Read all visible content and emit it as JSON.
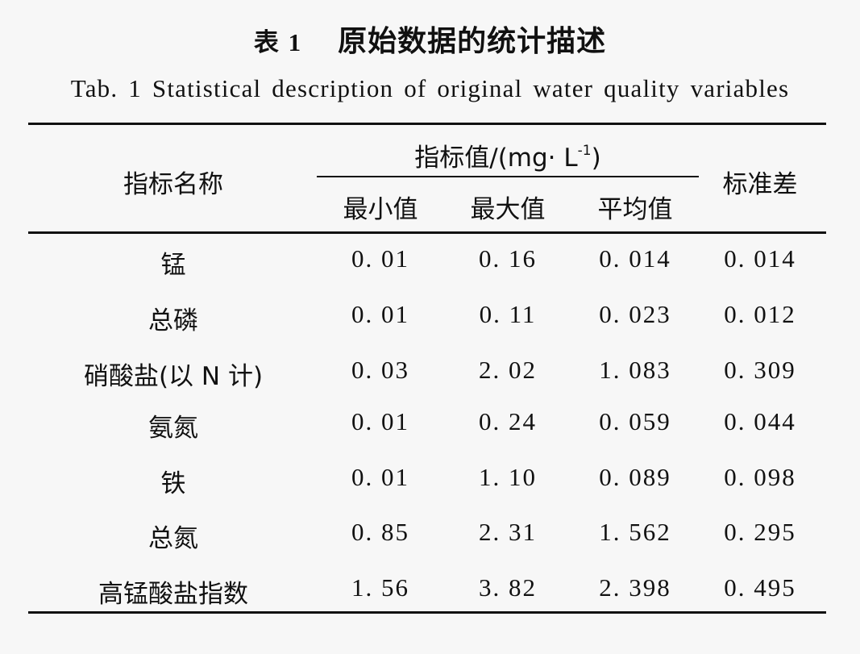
{
  "table": {
    "caption_cn_number": "表 1",
    "caption_cn_text": "原始数据的统计描述",
    "caption_en": "Tab. 1   Statistical description of original water quality variables",
    "header": {
      "name_col": "指标名称",
      "group_label_main": "指标值/(mg· L",
      "group_label_sup": "-1",
      "group_label_end": ")",
      "sub_cols": [
        "最小值",
        "最大值",
        "平均值"
      ],
      "std_col": "标准差"
    },
    "rows": [
      {
        "name": "锰",
        "min": "0. 01",
        "max": "0. 16",
        "mean": "0. 014",
        "std": "0. 014"
      },
      {
        "name": "总磷",
        "min": "0. 01",
        "max": "0. 11",
        "mean": "0. 023",
        "std": "0. 012"
      },
      {
        "name": "硝酸盐(以 N 计)",
        "min": "0. 03",
        "max": "2. 02",
        "mean": "1. 083",
        "std": "0. 309"
      },
      {
        "name": "氨氮",
        "min": "0. 01",
        "max": "0. 24",
        "mean": "0. 059",
        "std": "0. 044"
      },
      {
        "name": "铁",
        "min": "0. 01",
        "max": "1. 10",
        "mean": "0. 089",
        "std": "0. 098"
      },
      {
        "name": "总氮",
        "min": "0. 85",
        "max": "2. 31",
        "mean": "1. 562",
        "std": "0. 295"
      },
      {
        "name": "高锰酸盐指数",
        "min": "1. 56",
        "max": "3. 82",
        "mean": "2. 398",
        "std": "0. 495"
      }
    ]
  }
}
